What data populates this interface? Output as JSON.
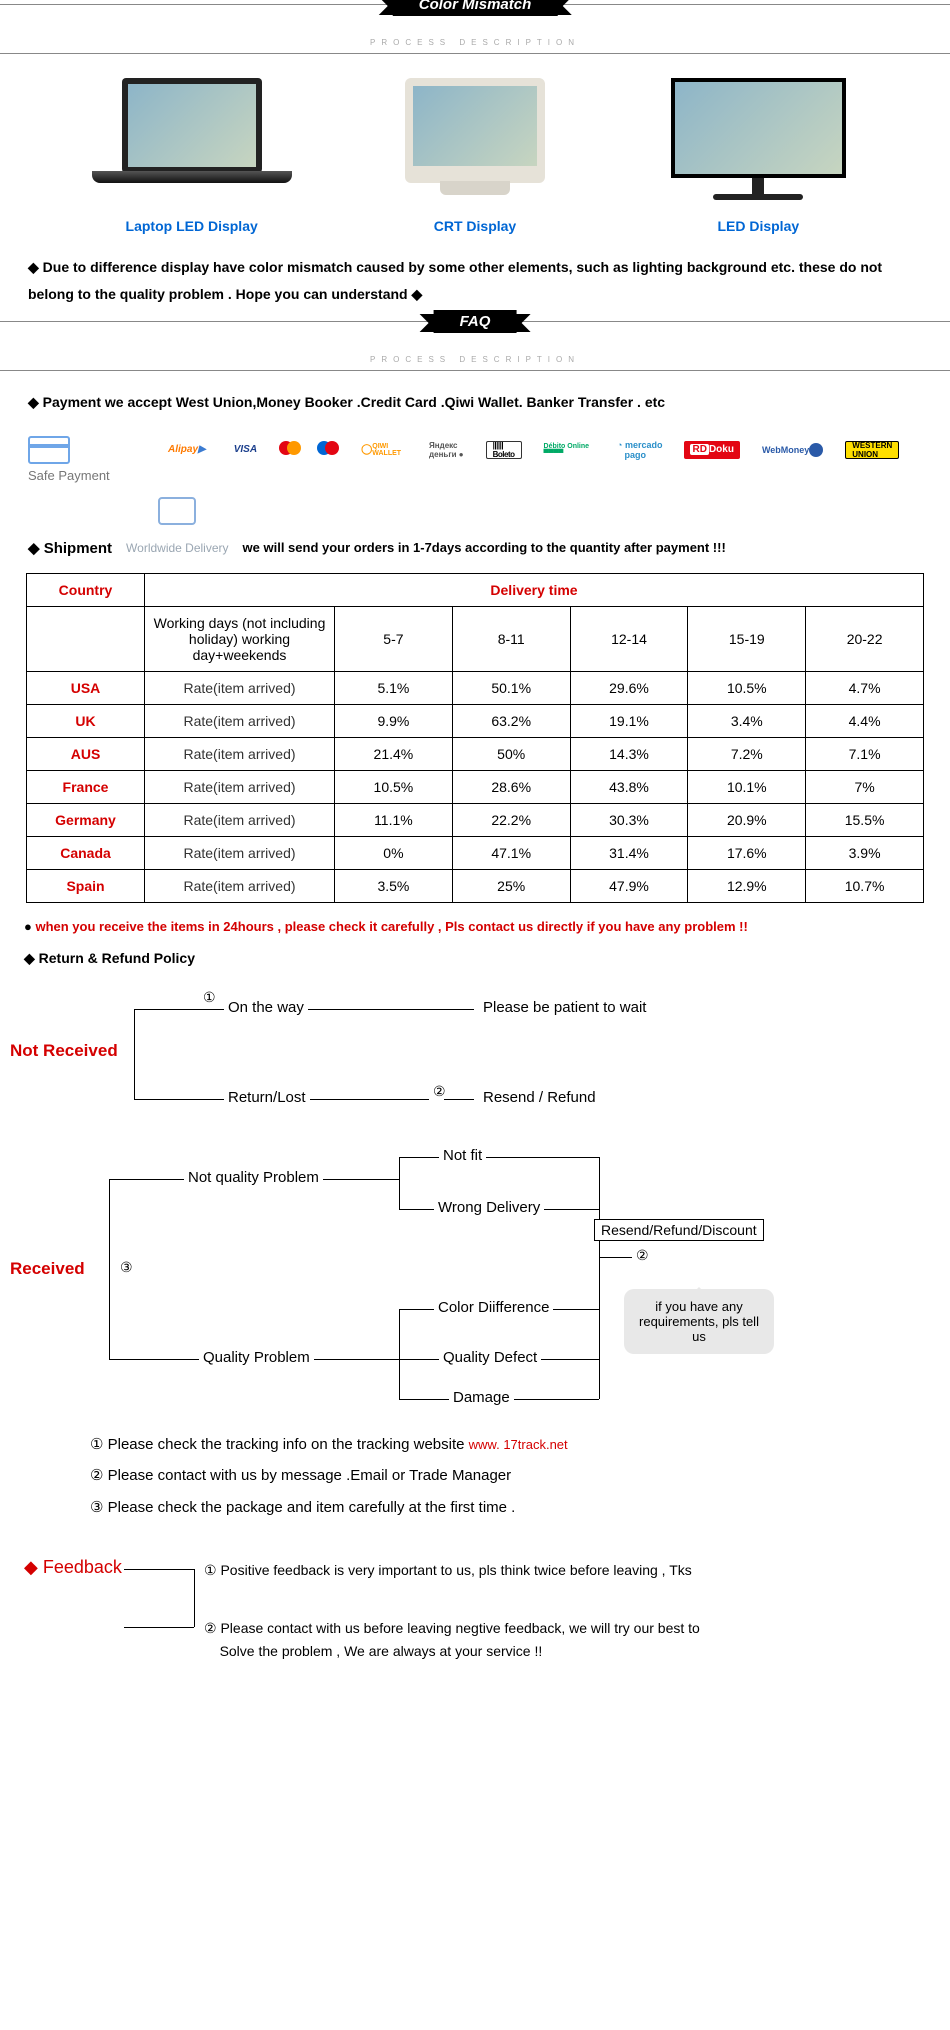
{
  "banners": {
    "color_mismatch": "Color Mismatch",
    "faq": "FAQ",
    "sub": "PROCESS   DESCRIPTION"
  },
  "displays": [
    {
      "label": "Laptop LED Display"
    },
    {
      "label": "CRT Display"
    },
    {
      "label": "LED  Display"
    }
  ],
  "color_note": "Due to difference display have color mismatch caused by some other elements, such as lighting background etc.  these do not belong to the quality problem . Hope you can understand",
  "payment_line": "Payment we accept West Union,Money Booker .Credit Card .Qiwi Wallet. Banker Transfer . etc",
  "payment_icons": [
    "Alipay",
    "VISA",
    "mc",
    "mc2",
    "QIWI WALLET",
    "Яндекс деньги",
    "Boleto",
    "Débito Online",
    "mercado pago",
    "Doku",
    "WebMoney",
    "WESTERN UNION"
  ],
  "safe_payment": "Safe Payment",
  "shipment": {
    "title": "Shipment",
    "grey": "Worldwide Delivery",
    "bold": "we will send your orders in 1-7days according to the quantity after payment  !!!"
  },
  "table": {
    "headers": {
      "country": "Country",
      "delivery_time": "Delivery time"
    },
    "row_header": "Working days (not including holiday) working day+weekends",
    "day_ranges": [
      "5-7",
      "8-11",
      "12-14",
      "15-19",
      "20-22"
    ],
    "rate_label": "Rate(item arrived)",
    "rows": [
      {
        "country": "USA",
        "v": [
          "5.1%",
          "50.1%",
          "29.6%",
          "10.5%",
          "4.7%"
        ]
      },
      {
        "country": "UK",
        "v": [
          "9.9%",
          "63.2%",
          "19.1%",
          "3.4%",
          "4.4%"
        ]
      },
      {
        "country": "AUS",
        "v": [
          "21.4%",
          "50%",
          "14.3%",
          "7.2%",
          "7.1%"
        ]
      },
      {
        "country": "France",
        "v": [
          "10.5%",
          "28.6%",
          "43.8%",
          "10.1%",
          "7%"
        ]
      },
      {
        "country": "Germany",
        "v": [
          "11.1%",
          "22.2%",
          "30.3%",
          "20.9%",
          "15.5%"
        ]
      },
      {
        "country": "Canada",
        "v": [
          "0%",
          "47.1%",
          "31.4%",
          "17.6%",
          "3.9%"
        ]
      },
      {
        "country": "Spain",
        "v": [
          "3.5%",
          "25%",
          "47.9%",
          "12.9%",
          "10.7%"
        ]
      }
    ]
  },
  "red_note": "when you receive the items in 24hours , please check it carefully , Pls contact us directly if you have any problem !!",
  "policy_head": "Return & Refund Policy",
  "flow1": {
    "not_received": "Not Received",
    "on_the_way": "On the way",
    "return_lost": "Return/Lost",
    "patient": "Please be patient to wait",
    "resend_refund": "Resend / Refund",
    "c1": "①",
    "c2": "②"
  },
  "flow2": {
    "received": "Received",
    "nqp": "Not quality Problem",
    "qp": "Quality Problem",
    "not_fit": "Not fit",
    "wrong": "Wrong Delivery",
    "color_diff": "Color Diifference",
    "qdefect": "Quality Defect",
    "damage": "Damage",
    "box": "Resend/Refund/Discount",
    "bubble": "if you have any requirements, pls tell us",
    "c3": "③",
    "c2": "②"
  },
  "notes": {
    "n1": "① Please check the tracking info on the tracking website",
    "n1link": "www. 17track.net",
    "n2": "② Please contact with us by message .Email or Trade Manager",
    "n3": "③ Please check the package and item carefully at the first time ."
  },
  "feedback": {
    "title": "Feedback",
    "c1": "①",
    "c2": "②",
    "l1": "Positive feedback is very important to us, pls think twice before leaving , Tks",
    "l2a": "Please contact with us before leaving negtive feedback, we will try our best to",
    "l2b": "Solve the problem , We are always at your service !!"
  },
  "colors": {
    "red": "#d40000",
    "blue": "#0066d4",
    "grey": "#9aa6b2"
  }
}
